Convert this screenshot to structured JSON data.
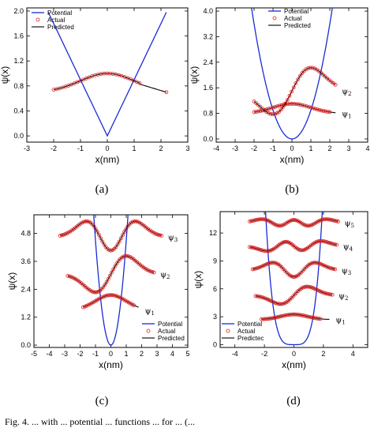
{
  "legend_labels": {
    "potential": "Potential",
    "actual": "Actual",
    "predicted": "Predicted"
  },
  "colors": {
    "potential": "#1a2bd6",
    "actual_marker": "#e02020",
    "predicted": "#000000"
  },
  "caption": "Fig. 4. ... with ... potential ... functions ... for ... (...",
  "chart_data": [
    {
      "panel": "(a)",
      "type": "line",
      "xlabel": "x(nm)",
      "ylabel": "ψ(x)",
      "xlim": [
        -3,
        3
      ],
      "ylim": [
        -0.1,
        2.05
      ],
      "xticks": [
        -3,
        -2,
        -1,
        0,
        1,
        2,
        3
      ],
      "yticks": [
        0.0,
        0.4,
        0.8,
        1.2,
        1.6,
        2.0
      ],
      "ytick_labels": [
        "0.0",
        "0.4",
        "0.8",
        "1.2",
        "1.6",
        "2.0"
      ],
      "legend_position": "top-left",
      "potential": {
        "shape": "v",
        "slope": 0.9,
        "bottom": 0.0,
        "x_range": [
          -2.2,
          2.2
        ]
      },
      "states": [
        {
          "label": "",
          "offset": 0.7,
          "amplitude": 0.3,
          "n": 0,
          "sigma": 1.0,
          "actual_range": [
            -2.0,
            1.2
          ],
          "predicted_range": [
            -2.0,
            2.2
          ],
          "actual_extra": [
            [
              2.2,
              0.7
            ]
          ],
          "predicted_tail": [
            [
              1.2,
              0.83
            ],
            [
              2.2,
              0.7
            ]
          ]
        }
      ]
    },
    {
      "panel": "(b)",
      "type": "line",
      "xlabel": "x(nm)",
      "ylabel": "ψ(x)",
      "xlim": [
        -4,
        4
      ],
      "ylim": [
        -0.1,
        4.1
      ],
      "xticks": [
        -4,
        -3,
        -2,
        -1,
        0,
        1,
        2,
        3,
        4
      ],
      "yticks": [
        0.0,
        0.8,
        1.6,
        2.4,
        3.2,
        4.0
      ],
      "ytick_labels": [
        "0.0",
        "0.8",
        "1.6",
        "2.4",
        "3.2",
        "4.0"
      ],
      "legend_position": "top-center",
      "potential": {
        "shape": "parabola",
        "coef": 0.9,
        "bottom": 0.0,
        "x_range": [
          -2.2,
          2.2
        ]
      },
      "states": [
        {
          "label": "ψ1",
          "offset": 0.8,
          "amplitude": 0.3,
          "n": 0,
          "sigma": 1.0,
          "actual_range": [
            -2.0,
            2.0
          ],
          "predicted_range": [
            -2.0,
            2.3
          ]
        },
        {
          "label": "ψ2",
          "offset": 1.5,
          "amplitude": 0.7,
          "n": 1,
          "sigma": 1.0,
          "actual_range": [
            -2.0,
            2.3
          ],
          "predicted_range": [
            -2.0,
            2.3
          ]
        }
      ]
    },
    {
      "panel": "(c)",
      "type": "line",
      "xlabel": "x(nm)",
      "ylabel": "ψ(x)",
      "xlim": [
        -5,
        5
      ],
      "ylim": [
        -0.1,
        5.6
      ],
      "xticks": [
        -5,
        -4,
        -3,
        -2,
        -1,
        0,
        1,
        2,
        3,
        4,
        5
      ],
      "yticks": [
        0.0,
        1.2,
        2.4,
        3.6,
        4.8
      ],
      "ytick_labels": [
        "0.0",
        "1.2",
        "2.4",
        "3.6",
        "4.8"
      ],
      "legend_position": "bottom-right",
      "potential": {
        "shape": "parabola",
        "coef": 4.5,
        "bottom": 0.0,
        "x_range": [
          -1.3,
          1.3
        ]
      },
      "states": [
        {
          "label": "ψ1",
          "offset": 1.5,
          "amplitude": 0.65,
          "n": 0,
          "sigma": 1.0,
          "actual_range": [
            -1.8,
            1.5
          ],
          "predicted_range": [
            -1.8,
            1.8
          ]
        },
        {
          "label": "ψ2",
          "offset": 3.05,
          "amplitude": 0.75,
          "n": 1,
          "sigma": 1.0,
          "actual_range": [
            -2.8,
            2.8
          ],
          "predicted_range": [
            -2.8,
            2.8
          ]
        },
        {
          "label": "ψ3",
          "offset": 4.65,
          "amplitude": 0.9,
          "n": 2,
          "sigma": 1.0,
          "actual_range": [
            -3.3,
            3.3
          ],
          "predicted_range": [
            -3.3,
            3.3
          ]
        }
      ]
    },
    {
      "panel": "(d)",
      "type": "line",
      "xlabel": "x(nm)",
      "ylabel": "ψ(x)",
      "xlim": [
        -5,
        5
      ],
      "ylim": [
        -0.3,
        14.3
      ],
      "xticks": [
        -4,
        -2,
        0,
        2,
        4
      ],
      "yticks": [
        0,
        3,
        6,
        9,
        12
      ],
      "ytick_labels": [
        "0",
        "3",
        "6",
        "9",
        "12"
      ],
      "legend_position": "bottom-left",
      "legend_label_predicted": "Predictec",
      "potential": {
        "shape": "quartic",
        "coef": 3.0,
        "bottom": 0.0,
        "x_range": [
          -2.2,
          2.2
        ]
      },
      "states": [
        {
          "label": "ψ1",
          "offset": 2.7,
          "amplitude": 0.55,
          "n": 0,
          "sigma": 0.9,
          "actual_range": [
            -2.2,
            1.8
          ],
          "predicted_range": [
            -2.2,
            2.4
          ]
        },
        {
          "label": "ψ2",
          "offset": 5.3,
          "amplitude": 0.9,
          "n": 1,
          "sigma": 0.9,
          "actual_range": [
            -2.6,
            2.6
          ],
          "predicted_range": [
            -2.6,
            2.6
          ]
        },
        {
          "label": "ψ3",
          "offset": 8.0,
          "amplitude": 1.1,
          "n": 2,
          "sigma": 0.9,
          "actual_range": [
            -2.8,
            2.8
          ],
          "predicted_range": [
            -2.8,
            2.8
          ]
        },
        {
          "label": "ψ4",
          "offset": 10.6,
          "amplitude": 1.2,
          "n": 3,
          "sigma": 0.9,
          "actual_range": [
            -3.0,
            2.9
          ],
          "predicted_range": [
            -3.0,
            2.9
          ]
        },
        {
          "label": "ψ5",
          "offset": 13.1,
          "amplitude": 1.3,
          "n": 4,
          "sigma": 0.9,
          "actual_range": [
            -3.0,
            3.0
          ],
          "predicted_range": [
            -3.0,
            3.0
          ]
        }
      ]
    }
  ]
}
